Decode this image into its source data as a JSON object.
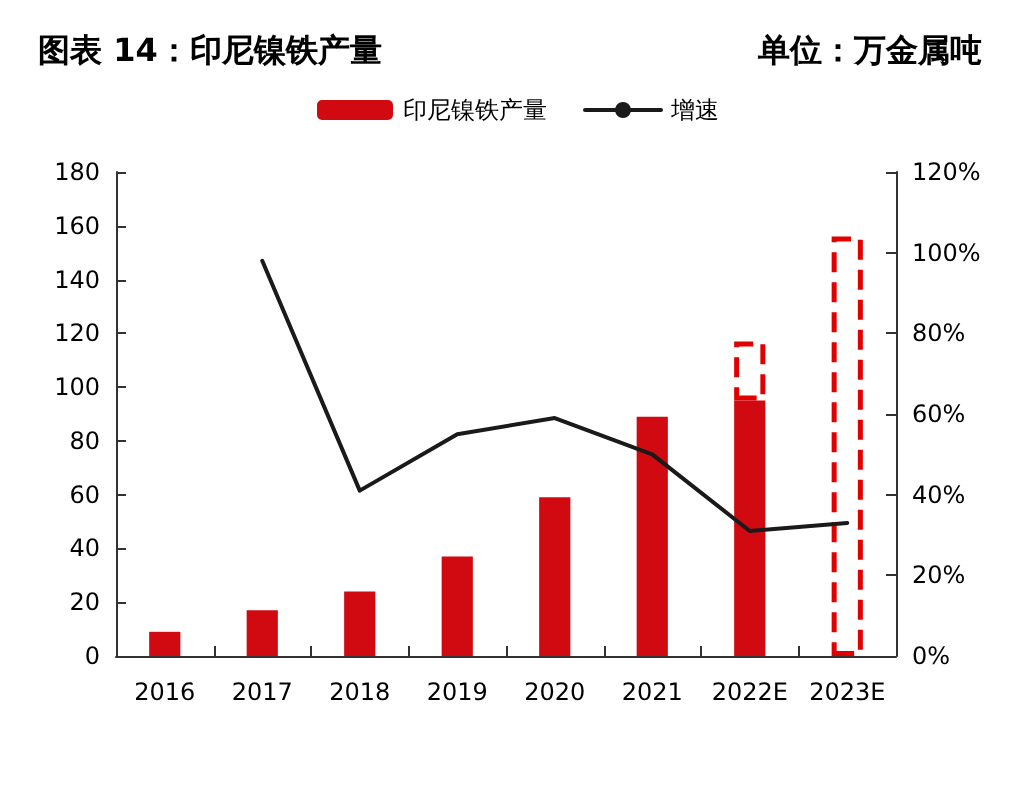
{
  "chart_data": {
    "type": "bar",
    "title": "图表 14：印尼镍铁产量",
    "subtitle": "单位：万金属吨",
    "categories": [
      "2016",
      "2017",
      "2018",
      "2019",
      "2020",
      "2021",
      "2022E",
      "2023E"
    ],
    "series": [
      {
        "name": "印尼镍铁产量",
        "color": "#d10a12",
        "values": [
          9,
          17,
          24,
          37,
          59,
          89,
          95,
          null
        ]
      },
      {
        "color": "#e00000",
        "line_style": "dashed",
        "values": [
          null,
          null,
          null,
          null,
          null,
          null,
          22,
          156
        ]
      },
      {
        "name": "增速",
        "type": "line",
        "axis": "y2",
        "color": "#1a1a1a",
        "values": [
          null,
          98,
          41,
          55,
          59,
          50,
          31,
          33
        ]
      }
    ],
    "stacked": true,
    "ylim": [
      0,
      180
    ],
    "yticks": [
      0,
      20,
      40,
      60,
      80,
      100,
      120,
      140,
      160,
      180
    ],
    "y2lim": [
      0,
      120
    ],
    "y2ticks": [
      {
        "value": 0,
        "label": "0%"
      },
      {
        "value": 20,
        "label": "20%"
      },
      {
        "value": 40,
        "label": "40%"
      },
      {
        "value": 60,
        "label": "60%"
      },
      {
        "value": 80,
        "label": "80%"
      },
      {
        "value": 100,
        "label": "100%"
      },
      {
        "value": 120,
        "label": "120%"
      }
    ],
    "legend": "top",
    "grid": false,
    "marker": "none"
  }
}
